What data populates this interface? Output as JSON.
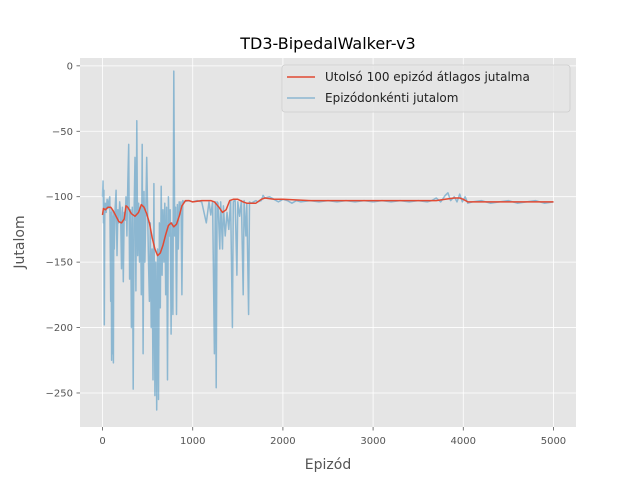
{
  "chart_data": {
    "type": "line",
    "title": "TD3-BipedalWalker-v3",
    "xlabel": "Epizód",
    "ylabel": "Jutalom",
    "xlim": [
      -250,
      5250
    ],
    "ylim": [
      -276,
      6
    ],
    "xticks": [
      0,
      1000,
      2000,
      3000,
      4000,
      5000
    ],
    "yticks": [
      0,
      -50,
      -100,
      -150,
      -200,
      -250
    ],
    "xtick_labels": [
      "0",
      "1000",
      "2000",
      "3000",
      "4000",
      "5000"
    ],
    "ytick_labels": [
      "0",
      "−50",
      "−100",
      "−150",
      "−200",
      "−250"
    ],
    "grid": true,
    "style": "ggplot",
    "legend": {
      "position": "top-right"
    },
    "series": [
      {
        "name": "Utolsó 100 epizód átlagos jutalma",
        "color": "#e24a33",
        "points": [
          [
            0,
            -114
          ],
          [
            10,
            -109
          ],
          [
            30,
            -110
          ],
          [
            60,
            -108
          ],
          [
            90,
            -108
          ],
          [
            120,
            -111
          ],
          [
            150,
            -115
          ],
          [
            180,
            -119
          ],
          [
            210,
            -120
          ],
          [
            240,
            -117
          ],
          [
            260,
            -107
          ],
          [
            280,
            -108
          ],
          [
            320,
            -113
          ],
          [
            360,
            -115
          ],
          [
            400,
            -112
          ],
          [
            430,
            -106
          ],
          [
            460,
            -108
          ],
          [
            490,
            -113
          ],
          [
            520,
            -120
          ],
          [
            550,
            -131
          ],
          [
            580,
            -140
          ],
          [
            610,
            -145
          ],
          [
            640,
            -143
          ],
          [
            670,
            -137
          ],
          [
            700,
            -129
          ],
          [
            730,
            -122
          ],
          [
            760,
            -120
          ],
          [
            790,
            -123
          ],
          [
            820,
            -121
          ],
          [
            850,
            -115
          ],
          [
            880,
            -107
          ],
          [
            920,
            -103
          ],
          [
            960,
            -103
          ],
          [
            1000,
            -104
          ],
          [
            1100,
            -103
          ],
          [
            1200,
            -103
          ],
          [
            1240,
            -104
          ],
          [
            1290,
            -108
          ],
          [
            1330,
            -112
          ],
          [
            1370,
            -110
          ],
          [
            1410,
            -103
          ],
          [
            1450,
            -102
          ],
          [
            1500,
            -102
          ],
          [
            1560,
            -104
          ],
          [
            1600,
            -105
          ],
          [
            1700,
            -105
          ],
          [
            1760,
            -102
          ],
          [
            1800,
            -101
          ],
          [
            1900,
            -102
          ],
          [
            2000,
            -102
          ],
          [
            2300,
            -103
          ],
          [
            2600,
            -103
          ],
          [
            2900,
            -103
          ],
          [
            3200,
            -103
          ],
          [
            3500,
            -103
          ],
          [
            3700,
            -103
          ],
          [
            3800,
            -102
          ],
          [
            3900,
            -101
          ],
          [
            3960,
            -101
          ],
          [
            4000,
            -102
          ],
          [
            4050,
            -104
          ],
          [
            4100,
            -104
          ],
          [
            4400,
            -104
          ],
          [
            4700,
            -104
          ],
          [
            5000,
            -104
          ]
        ]
      },
      {
        "name": "Epizódonkénti jutalom",
        "color": "#348abd",
        "points": [
          [
            0,
            -100
          ],
          [
            5,
            -88
          ],
          [
            10,
            -120
          ],
          [
            15,
            -95
          ],
          [
            20,
            -198
          ],
          [
            25,
            -108
          ],
          [
            30,
            -105
          ],
          [
            40,
            -112
          ],
          [
            50,
            -102
          ],
          [
            60,
            -109
          ],
          [
            70,
            -103
          ],
          [
            80,
            -100
          ],
          [
            90,
            -180
          ],
          [
            95,
            -112
          ],
          [
            100,
            -225
          ],
          [
            105,
            -110
          ],
          [
            110,
            -220
          ],
          [
            115,
            -115
          ],
          [
            120,
            -227
          ],
          [
            125,
            -112
          ],
          [
            130,
            -140
          ],
          [
            140,
            -108
          ],
          [
            150,
            -95
          ],
          [
            160,
            -145
          ],
          [
            170,
            -110
          ],
          [
            180,
            -120
          ],
          [
            190,
            -104
          ],
          [
            200,
            -112
          ],
          [
            210,
            -155
          ],
          [
            220,
            -108
          ],
          [
            230,
            -165
          ],
          [
            240,
            -112
          ],
          [
            250,
            -118
          ],
          [
            260,
            -100
          ],
          [
            270,
            -130
          ],
          [
            280,
            -90
          ],
          [
            290,
            -60
          ],
          [
            300,
            -163
          ],
          [
            310,
            -110
          ],
          [
            320,
            -200
          ],
          [
            330,
            -108
          ],
          [
            340,
            -247
          ],
          [
            350,
            -112
          ],
          [
            360,
            -70
          ],
          [
            370,
            -172
          ],
          [
            380,
            -42
          ],
          [
            390,
            -145
          ],
          [
            400,
            -105
          ],
          [
            410,
            -150
          ],
          [
            420,
            -108
          ],
          [
            430,
            -175
          ],
          [
            440,
            -60
          ],
          [
            450,
            -220
          ],
          [
            460,
            -96
          ],
          [
            470,
            -150
          ],
          [
            480,
            -112
          ],
          [
            490,
            -70
          ],
          [
            500,
            -110
          ],
          [
            510,
            -150
          ],
          [
            520,
            -180
          ],
          [
            530,
            -120
          ],
          [
            540,
            -200
          ],
          [
            550,
            -140
          ],
          [
            560,
            -240
          ],
          [
            570,
            -90
          ],
          [
            580,
            -252
          ],
          [
            590,
            -150
          ],
          [
            600,
            -263
          ],
          [
            610,
            -140
          ],
          [
            620,
            -255
          ],
          [
            630,
            -120
          ],
          [
            640,
            -185
          ],
          [
            650,
            -92
          ],
          [
            660,
            -160
          ],
          [
            670,
            -110
          ],
          [
            680,
            -150
          ],
          [
            690,
            -105
          ],
          [
            700,
            -175
          ],
          [
            710,
            -108
          ],
          [
            720,
            -240
          ],
          [
            730,
            -100
          ],
          [
            740,
            -130
          ],
          [
            750,
            -110
          ],
          [
            760,
            -205
          ],
          [
            770,
            -120
          ],
          [
            780,
            -190
          ],
          [
            790,
            -4
          ],
          [
            800,
            -130
          ],
          [
            810,
            -108
          ],
          [
            820,
            -190
          ],
          [
            830,
            -106
          ],
          [
            840,
            -140
          ],
          [
            850,
            -104
          ],
          [
            860,
            -113
          ],
          [
            870,
            -104
          ],
          [
            880,
            -175
          ],
          [
            890,
            -103
          ],
          [
            900,
            -104
          ],
          [
            950,
            -103
          ],
          [
            1000,
            -104
          ],
          [
            1050,
            -103
          ],
          [
            1100,
            -104
          ],
          [
            1150,
            -120
          ],
          [
            1180,
            -104
          ],
          [
            1200,
            -114
          ],
          [
            1220,
            -104
          ],
          [
            1240,
            -220
          ],
          [
            1250,
            -104
          ],
          [
            1260,
            -246
          ],
          [
            1270,
            -104
          ],
          [
            1280,
            -105
          ],
          [
            1300,
            -140
          ],
          [
            1310,
            -104
          ],
          [
            1330,
            -140
          ],
          [
            1340,
            -107
          ],
          [
            1360,
            -130
          ],
          [
            1380,
            -112
          ],
          [
            1400,
            -125
          ],
          [
            1420,
            -103
          ],
          [
            1440,
            -200
          ],
          [
            1450,
            -104
          ],
          [
            1470,
            -102
          ],
          [
            1490,
            -160
          ],
          [
            1500,
            -104
          ],
          [
            1520,
            -115
          ],
          [
            1540,
            -103
          ],
          [
            1560,
            -175
          ],
          [
            1570,
            -103
          ],
          [
            1590,
            -130
          ],
          [
            1600,
            -105
          ],
          [
            1620,
            -190
          ],
          [
            1630,
            -104
          ],
          [
            1650,
            -105
          ],
          [
            1700,
            -103
          ],
          [
            1720,
            -104
          ],
          [
            1760,
            -103
          ],
          [
            1780,
            -99
          ],
          [
            1800,
            -101
          ],
          [
            1850,
            -100
          ],
          [
            1900,
            -102
          ],
          [
            1950,
            -104
          ],
          [
            2000,
            -102
          ],
          [
            2050,
            -103
          ],
          [
            2100,
            -105
          ],
          [
            2150,
            -103
          ],
          [
            2200,
            -104
          ],
          [
            2300,
            -103
          ],
          [
            2400,
            -104
          ],
          [
            2500,
            -103
          ],
          [
            2600,
            -104
          ],
          [
            2700,
            -103
          ],
          [
            2800,
            -104
          ],
          [
            2900,
            -103
          ],
          [
            3000,
            -104
          ],
          [
            3100,
            -103
          ],
          [
            3200,
            -104
          ],
          [
            3300,
            -103
          ],
          [
            3400,
            -104
          ],
          [
            3500,
            -103
          ],
          [
            3600,
            -104
          ],
          [
            3650,
            -103
          ],
          [
            3700,
            -101
          ],
          [
            3750,
            -104
          ],
          [
            3800,
            -99
          ],
          [
            3830,
            -97
          ],
          [
            3860,
            -103
          ],
          [
            3900,
            -100
          ],
          [
            3930,
            -104
          ],
          [
            3960,
            -98
          ],
          [
            3990,
            -104
          ],
          [
            4020,
            -100
          ],
          [
            4050,
            -105
          ],
          [
            4100,
            -104
          ],
          [
            4200,
            -103
          ],
          [
            4300,
            -105
          ],
          [
            4400,
            -104
          ],
          [
            4500,
            -103
          ],
          [
            4600,
            -105
          ],
          [
            4700,
            -104
          ],
          [
            4800,
            -103
          ],
          [
            4900,
            -105
          ],
          [
            5000,
            -104
          ]
        ]
      }
    ]
  }
}
